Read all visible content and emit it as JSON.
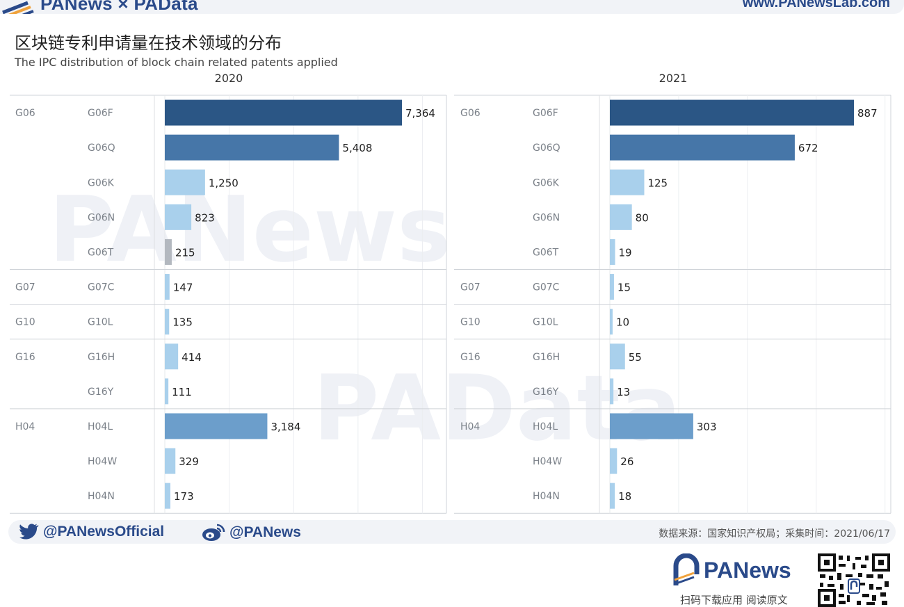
{
  "header": {
    "brand": "PANews × PAData",
    "site": "www.PANewsLab.com"
  },
  "title": "区块链专利申请量在技术领域的分布",
  "subtitle": "The IPC distribution of block chain related patents applied",
  "colors": {
    "dark": "#2b5685",
    "mid": "#4676a8",
    "medium_light": "#6c9ecb",
    "light": "#a9d0ec",
    "gray": "#b3b8bf",
    "brand": "#2a4a8a"
  },
  "chart_data": [
    {
      "type": "bar",
      "orientation": "horizontal",
      "title": "2020",
      "groups": [
        "G06",
        "",
        "",
        "",
        "",
        "G07",
        "G10",
        "G16",
        "",
        "H04",
        "",
        ""
      ],
      "categories": [
        "G06F",
        "G06Q",
        "G06K",
        "G06N",
        "G06T",
        "G07C",
        "G10L",
        "G16H",
        "G16Y",
        "H04L",
        "H04W",
        "H04N"
      ],
      "values": [
        7364,
        5408,
        1250,
        823,
        215,
        147,
        135,
        414,
        111,
        3184,
        329,
        173
      ],
      "value_labels": [
        "7,364",
        "5,408",
        "1,250",
        "823",
        "215",
        "147",
        "135",
        "414",
        "111",
        "3,184",
        "329",
        "173"
      ],
      "xlim": [
        0,
        8800
      ],
      "grid": true
    },
    {
      "type": "bar",
      "orientation": "horizontal",
      "title": "2021",
      "groups": [
        "G06",
        "",
        "",
        "",
        "",
        "G07",
        "G10",
        "G16",
        "",
        "H04",
        "",
        ""
      ],
      "categories": [
        "G06F",
        "G06Q",
        "G06K",
        "G06N",
        "G06T",
        "G07C",
        "G10L",
        "G16H",
        "G16Y",
        "H04L",
        "H04W",
        "H04N"
      ],
      "values": [
        887,
        672,
        125,
        80,
        19,
        15,
        10,
        55,
        13,
        303,
        26,
        18
      ],
      "value_labels": [
        "887",
        "672",
        "125",
        "80",
        "19",
        "15",
        "10",
        "55",
        "13",
        "303",
        "26",
        "18"
      ],
      "xlim": [
        0,
        1030
      ],
      "grid": true
    }
  ],
  "footer": {
    "twitter": "@PANewsOfficial",
    "weibo": "@PANews",
    "source": "数据来源：国家知识产权局；采集时间：2021/06/17",
    "app_brand": "PANews",
    "scan_text": "扫码下载应用  阅读原文"
  }
}
